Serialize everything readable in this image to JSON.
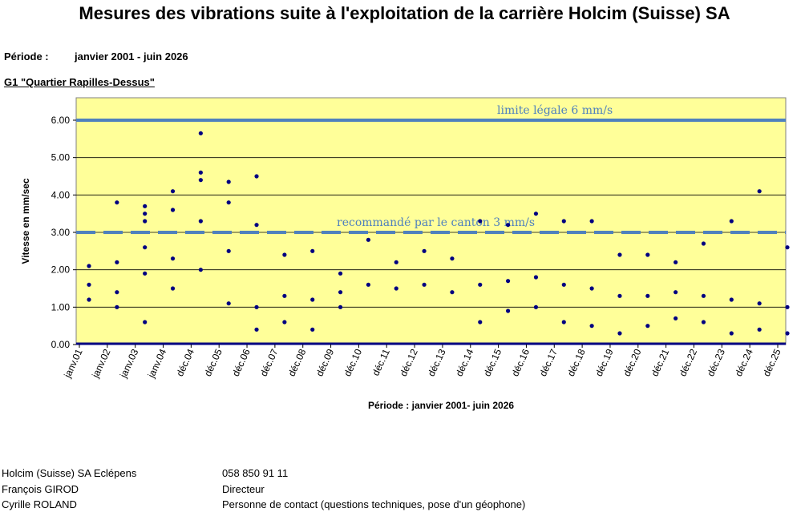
{
  "header": {
    "title": "Mesures des vibrations suite à l'exploitation de la carrière Holcim (Suisse) SA",
    "period_label": "Période :",
    "period_value": "janvier 2001 - juin 2026",
    "station": "G1 \"Quartier Rapilles-Dessus\""
  },
  "chart_data": {
    "type": "scatter",
    "ylabel": "Vitesse en mm/sec",
    "xlabel": "Période : janvier 2001- juin 2026",
    "ylim": [
      0,
      6.6
    ],
    "yticks": [
      "0.00",
      "1.00",
      "2.00",
      "3.00",
      "4.00",
      "5.00",
      "6.00"
    ],
    "xticks": [
      "janv.01",
      "janv.02",
      "janv.03",
      "janv.04",
      "déc.04",
      "déc.05",
      "déc.06",
      "déc.07",
      "déc.08",
      "déc.09",
      "déc.10",
      "déc.11",
      "déc.12",
      "déc.13",
      "déc.14",
      "déc.15",
      "déc.16",
      "déc.17",
      "déc.18",
      "déc.19",
      "déc.20",
      "déc.21",
      "déc.22",
      "déc.23",
      "déc.24",
      "déc.25"
    ],
    "grid": true,
    "background": "#ffff99",
    "marker_color": "#000080",
    "reference_lines": [
      {
        "label": "limite légale 6 mm/s",
        "value": 6,
        "style": "solid",
        "color": "#4f81bd"
      },
      {
        "label": "recommandé par le canton 3 mm/s",
        "value": 3,
        "style": "dashed",
        "color": "#4f81bd"
      }
    ],
    "series": [
      {
        "points": [
          [
            "janv.01",
            1.6
          ],
          [
            "janv.01",
            1.2
          ],
          [
            "janv.01",
            2.1
          ],
          [
            "janv.02",
            1.4
          ],
          [
            "janv.02",
            3.8
          ],
          [
            "janv.02",
            2.2
          ],
          [
            "janv.02",
            1.0
          ],
          [
            "janv.03",
            3.5
          ],
          [
            "janv.03",
            3.3
          ],
          [
            "janv.03",
            2.6
          ],
          [
            "janv.03",
            1.9
          ],
          [
            "janv.03",
            0.6
          ],
          [
            "janv.03",
            3.7
          ],
          [
            "janv.04",
            4.1
          ],
          [
            "janv.04",
            3.6
          ],
          [
            "janv.04",
            2.3
          ],
          [
            "janv.04",
            1.5
          ],
          [
            "déc.04",
            5.65
          ],
          [
            "déc.04",
            4.6
          ],
          [
            "déc.04",
            4.4
          ],
          [
            "déc.04",
            3.3
          ],
          [
            "déc.04",
            2.0
          ],
          [
            "déc.05",
            4.35
          ],
          [
            "déc.05",
            3.8
          ],
          [
            "déc.05",
            2.5
          ],
          [
            "déc.05",
            1.1
          ],
          [
            "déc.06",
            4.5
          ],
          [
            "déc.06",
            3.2
          ],
          [
            "déc.06",
            1.0
          ],
          [
            "déc.06",
            0.4
          ],
          [
            "déc.07",
            2.4
          ],
          [
            "déc.07",
            1.3
          ],
          [
            "déc.07",
            0.6
          ],
          [
            "déc.08",
            2.5
          ],
          [
            "déc.08",
            1.2
          ],
          [
            "déc.08",
            0.4
          ],
          [
            "déc.09",
            1.9
          ],
          [
            "déc.09",
            1.4
          ],
          [
            "déc.09",
            1.0
          ],
          [
            "déc.10",
            2.8
          ],
          [
            "déc.10",
            1.6
          ],
          [
            "déc.11",
            2.2
          ],
          [
            "déc.11",
            1.5
          ],
          [
            "déc.12",
            2.5
          ],
          [
            "déc.12",
            1.6
          ],
          [
            "déc.13",
            2.3
          ],
          [
            "déc.13",
            1.4
          ],
          [
            "déc.14",
            3.3
          ],
          [
            "déc.14",
            1.6
          ],
          [
            "déc.14",
            0.6
          ],
          [
            "déc.15",
            3.2
          ],
          [
            "déc.15",
            1.7
          ],
          [
            "déc.15",
            0.9
          ],
          [
            "déc.16",
            3.5
          ],
          [
            "déc.16",
            1.8
          ],
          [
            "déc.16",
            1.0
          ],
          [
            "déc.17",
            3.3
          ],
          [
            "déc.17",
            1.6
          ],
          [
            "déc.17",
            0.6
          ],
          [
            "déc.18",
            3.3
          ],
          [
            "déc.18",
            1.5
          ],
          [
            "déc.18",
            0.5
          ],
          [
            "déc.19",
            2.4
          ],
          [
            "déc.19",
            1.3
          ],
          [
            "déc.19",
            0.3
          ],
          [
            "déc.20",
            2.4
          ],
          [
            "déc.20",
            1.3
          ],
          [
            "déc.20",
            0.5
          ],
          [
            "déc.21",
            2.2
          ],
          [
            "déc.21",
            1.4
          ],
          [
            "déc.21",
            0.7
          ],
          [
            "déc.22",
            2.7
          ],
          [
            "déc.22",
            1.3
          ],
          [
            "déc.22",
            0.6
          ],
          [
            "déc.23",
            3.3
          ],
          [
            "déc.23",
            1.2
          ],
          [
            "déc.23",
            0.3
          ],
          [
            "déc.24",
            4.1
          ],
          [
            "déc.24",
            1.1
          ],
          [
            "déc.24",
            0.4
          ],
          [
            "déc.25",
            2.6
          ],
          [
            "déc.25",
            1.0
          ],
          [
            "déc.25",
            0.3
          ]
        ]
      }
    ]
  },
  "footer": {
    "rows": [
      {
        "left": "Holcim (Suisse) SA Eclépens",
        "right": "058 850 91 11"
      },
      {
        "left": "François GIROD",
        "right": "Directeur"
      },
      {
        "left": "Cyrille ROLAND",
        "right": "Personne de contact (questions techniques, pose d'un géophone)"
      }
    ]
  }
}
